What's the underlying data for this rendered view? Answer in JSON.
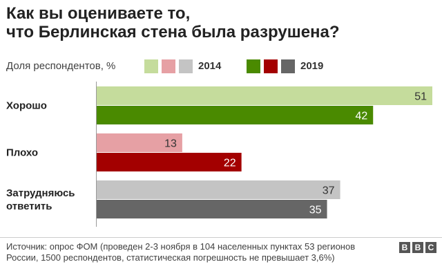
{
  "title": {
    "line1": "Как вы оцениваете то,",
    "line2": "что Берлинская стена была разрушена?"
  },
  "legend": {
    "label": "Доля респондентов, %",
    "year_a": "2014",
    "year_b": "2019",
    "colors_a": [
      "#c5dc9c",
      "#e6a0a4",
      "#c4c4c4"
    ],
    "colors_b": [
      "#4a8a00",
      "#a30000",
      "#666666"
    ]
  },
  "chart_data": {
    "type": "bar",
    "orientation": "horizontal",
    "title": "Как вы оцениваете то, что Берлинская стена была разрушена?",
    "xlabel": "Доля респондентов, %",
    "ylabel": "",
    "xlim": [
      0,
      51
    ],
    "categories": [
      "Хорошо",
      "Плохо",
      "Затрудняюсь ответить"
    ],
    "category_lines": [
      [
        "Хорошо"
      ],
      [
        "Плохо"
      ],
      [
        "Затрудняюсь",
        "ответить"
      ]
    ],
    "series": [
      {
        "name": "2014",
        "values": [
          51,
          13,
          37
        ],
        "colors": [
          "#c5dc9c",
          "#e6a0a4",
          "#c4c4c4"
        ],
        "label_color": "#333333"
      },
      {
        "name": "2019",
        "values": [
          42,
          22,
          35
        ],
        "colors": [
          "#4a8a00",
          "#a30000",
          "#666666"
        ],
        "label_color": "#ffffff"
      }
    ]
  },
  "footer": {
    "source": "Источник: опрос ФОМ (проведен 2-3 ноября в 104 населенных пунктах 53 регионов России, 1500 респондентов, статистическая погрешность не превышает 3,6%)"
  },
  "logo": {
    "letters": [
      "B",
      "B",
      "C"
    ]
  }
}
